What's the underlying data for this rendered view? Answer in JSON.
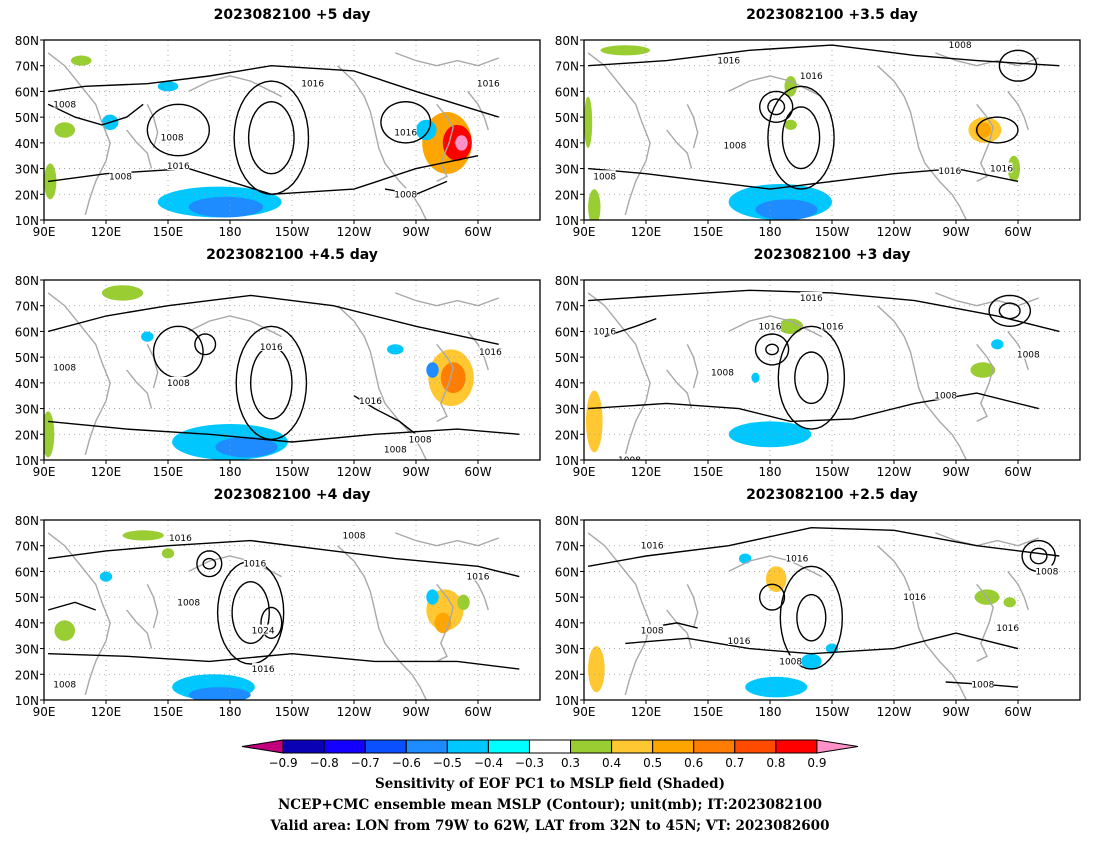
{
  "panels": [
    {
      "title": "2023082100  +5 day",
      "contour_labels": [
        "1008",
        "1016",
        "1008",
        "1016",
        "1008",
        "1016",
        "1016",
        "1008"
      ]
    },
    {
      "title": "2023082100  +3.5 day",
      "contour_labels": [
        "1016",
        "1008",
        "1016",
        "1008",
        "1008",
        "1016",
        "1016"
      ]
    },
    {
      "title": "2023082100  +4.5 day",
      "contour_labels": [
        "1016",
        "1008",
        "1008",
        "1016",
        "1016",
        "1008",
        "1008"
      ]
    },
    {
      "title": "2023082100  +3 day",
      "contour_labels": [
        "1016",
        "1016",
        "1016",
        "1016",
        "1008",
        "1008",
        "1008",
        "1008"
      ]
    },
    {
      "title": "2023082100  +4 day",
      "contour_labels": [
        "1016",
        "1008",
        "1016",
        "1016",
        "1008",
        "1024",
        "1016",
        "1008"
      ]
    },
    {
      "title": "2023082100  +2.5 day",
      "contour_labels": [
        "1016",
        "1016",
        "1008",
        "1016",
        "1016",
        "1016",
        "1008",
        "1008",
        "1008"
      ]
    }
  ],
  "axes": {
    "lat_labels": [
      "80N",
      "70N",
      "60N",
      "50N",
      "40N",
      "30N",
      "20N",
      "10N"
    ],
    "lon_labels": [
      "90E",
      "120E",
      "150E",
      "180",
      "150W",
      "120W",
      "90W",
      "60W"
    ]
  },
  "colorbar": {
    "tick_labels": [
      "−0.9",
      "−0.8",
      "−0.7",
      "−0.6",
      "−0.5",
      "−0.4",
      "−0.3",
      "0.3",
      "0.4",
      "0.5",
      "0.6",
      "0.7",
      "0.8",
      "0.9"
    ],
    "colors": [
      "#c0007c",
      "#0a00b4",
      "#1400ff",
      "#0a50ff",
      "#1e8cff",
      "#00c8ff",
      "#00ffff",
      "#ffffff",
      "#9acd32",
      "#ffc832",
      "#ffa500",
      "#ff7d00",
      "#ff4b00",
      "#ff0000",
      "#ff91c8"
    ]
  },
  "caption": {
    "line1": "Sensitivity of EOF PC1 to MSLP field (Shaded)",
    "line2": "NCEP+CMC ensemble mean MSLP (Contour); unit(mb); IT:2023082100",
    "line3": "Valid area: LON from 79W to 62W, LAT from 32N to 45N; VT: 2023082600"
  }
}
